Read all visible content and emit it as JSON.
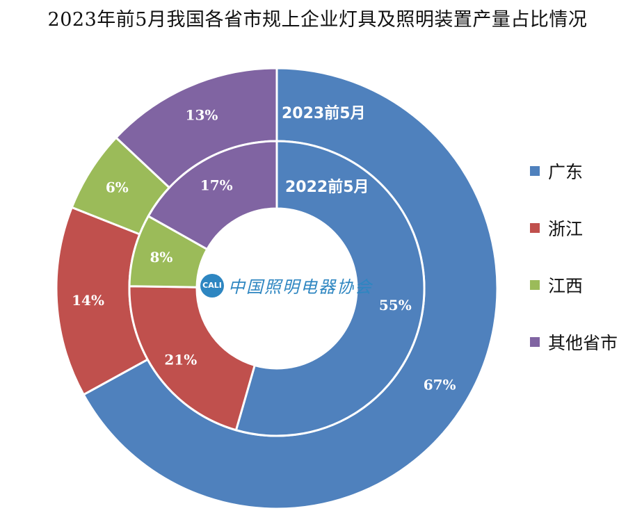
{
  "title": "2023年前5月我国各省市规上企业灯具及照明装置产量占比情况",
  "colors": {
    "广东": "#4f81bd",
    "浙江": "#c0504d",
    "江西": "#9bbb59",
    "其他省市": "#8064a2"
  },
  "legend": [
    "广东",
    "浙江",
    "江西",
    "其他省市"
  ],
  "logo": {
    "mark_text": "CALI",
    "text": "中国照明电器协会"
  },
  "chart_data": {
    "type": "donut",
    "title": "2023年前5月我国各省市规上企业灯具及照明装置产量占比情况",
    "categories": [
      "广东",
      "浙江",
      "江西",
      "其他省市"
    ],
    "series": [
      {
        "name": "2023前5月",
        "ring": "outer",
        "values": [
          67,
          14,
          6,
          13
        ],
        "labels": [
          "67%",
          "14%",
          "6%",
          "13%"
        ]
      },
      {
        "name": "2022前5月",
        "ring": "inner",
        "values": [
          55,
          21,
          8,
          17
        ],
        "labels": [
          "55%",
          "21%",
          "8%",
          "17%"
        ]
      }
    ],
    "legend_position": "right"
  }
}
